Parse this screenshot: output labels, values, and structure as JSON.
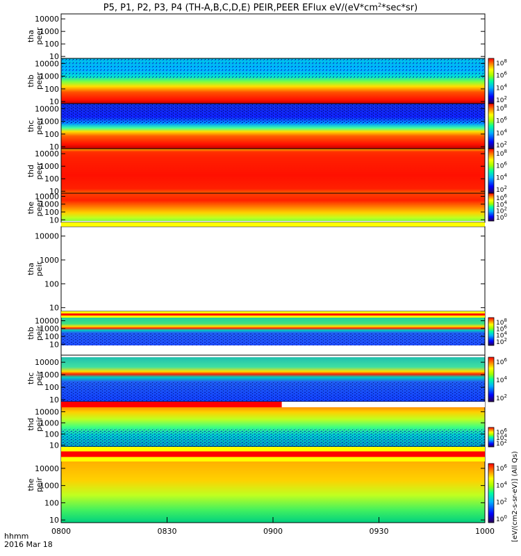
{
  "chart_data": {
    "type": "heatmap",
    "title": "P5, P1, P2, P3, P4 (TH-A,B,C,D,E) PEIR,PEER EFlux eV/(eV*cm",
    "title_sup": "2",
    "title_end": "*sec*sr)",
    "x_axis": {
      "label_line1": "hhmm",
      "label_line2": "2016 Mar 18",
      "ticks": [
        {
          "label": "0800",
          "value": 0
        },
        {
          "label": "0830",
          "value": 30
        },
        {
          "label": "0900",
          "value": 60
        },
        {
          "label": "0930",
          "value": 90
        },
        {
          "label": "1000",
          "value": 120
        }
      ],
      "range_minutes": [
        0,
        120
      ]
    },
    "y_axis": {
      "scale": "log",
      "range_eV": [
        7,
        25000
      ],
      "ticks": [
        {
          "label": "10",
          "value": 10
        },
        {
          "label": "100",
          "value": 100
        },
        {
          "label": "1000",
          "value": 1000
        },
        {
          "label": "10000",
          "value": 10000
        }
      ]
    },
    "colorbar_ticks": [
      {
        "base": "10",
        "exp": "8"
      },
      {
        "base": "10",
        "exp": "6"
      },
      {
        "base": "10",
        "exp": "4"
      },
      {
        "base": "10",
        "exp": "2"
      }
    ],
    "colorbar_ticks_peir_c": [
      {
        "base": "10",
        "exp": "6"
      },
      {
        "base": "10",
        "exp": "4"
      },
      {
        "base": "10",
        "exp": "2"
      }
    ],
    "colorbar_ticks_peir_e": [
      {
        "base": "10",
        "exp": "6"
      },
      {
        "base": "10",
        "exp": "4"
      },
      {
        "base": "10",
        "exp": "2"
      },
      {
        "base": "10",
        "exp": "0"
      }
    ],
    "right_label": "[eV/(cm2-s-sr-eV)] (All Qs)",
    "panels": [
      {
        "id": "tha-peer",
        "probe": "tha",
        "species": "peer",
        "has_data": false
      },
      {
        "id": "thb-peer",
        "probe": "thb",
        "species": "peer",
        "has_data": true
      },
      {
        "id": "thc-peer",
        "probe": "thc",
        "species": "peer",
        "has_data": true
      },
      {
        "id": "thd-peer",
        "probe": "thd",
        "species": "peer",
        "has_data": true
      },
      {
        "id": "the-peer",
        "probe": "the",
        "species": "peer",
        "has_data": true
      },
      {
        "id": "tha-peir",
        "probe": "tha",
        "species": "peir",
        "has_data": false
      },
      {
        "id": "thb-peir",
        "probe": "thb",
        "species": "peir",
        "has_data": true
      },
      {
        "id": "thc-peir",
        "probe": "thc",
        "species": "peir",
        "has_data": true
      },
      {
        "id": "thd-peir",
        "probe": "thd",
        "species": "peir",
        "has_data": true
      },
      {
        "id": "the-peir",
        "probe": "the",
        "species": "peir",
        "has_data": true
      }
    ]
  }
}
